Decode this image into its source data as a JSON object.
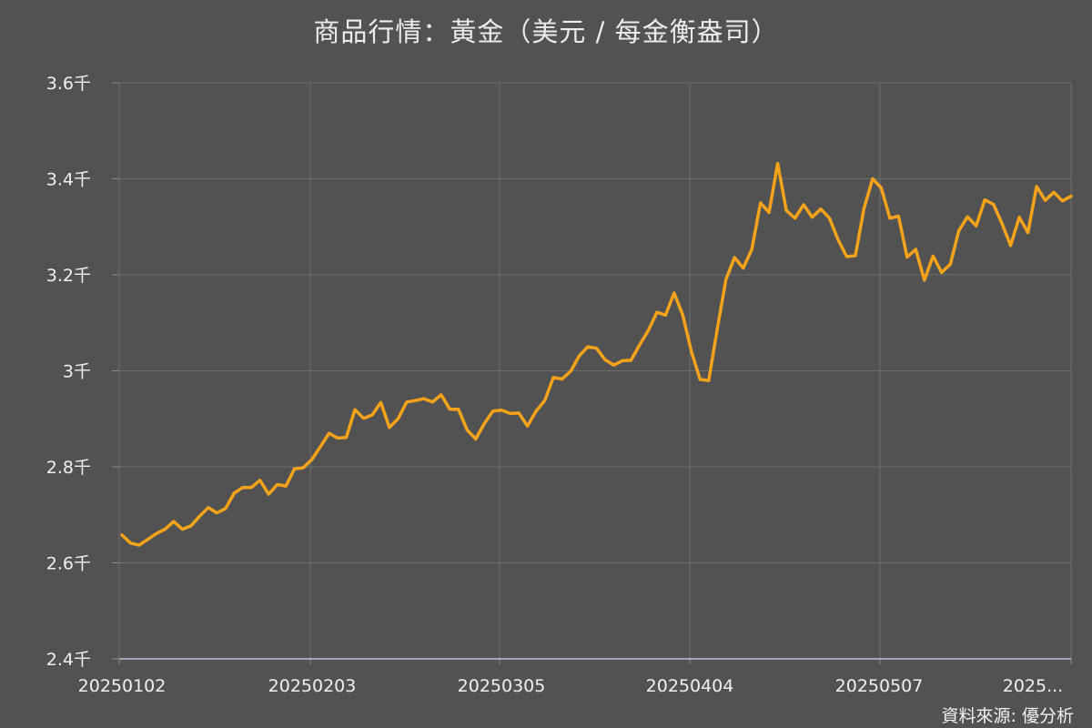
{
  "chart_data": {
    "type": "line",
    "title": "商品行情：黃金（美元 / 每金衡盎司）",
    "source": "資料來源: 優分析",
    "y_tick_labels": [
      "2.4千",
      "2.6千",
      "2.8千",
      "3千",
      "3.2千",
      "3.4千",
      "3.6千"
    ],
    "y_ticks": [
      2400,
      2600,
      2800,
      3000,
      3200,
      3400,
      3600
    ],
    "ylim": [
      2400,
      3600
    ],
    "x_tick_labels": [
      "20250102",
      "20250203",
      "20250305",
      "20250404",
      "20250507",
      "2025..."
    ],
    "grid": true,
    "series": [
      {
        "color": "#f5a31a",
        "values": [
          2658,
          2641,
          2637,
          2649,
          2661,
          2670,
          2686,
          2670,
          2677,
          2697,
          2715,
          2704,
          2713,
          2745,
          2757,
          2757,
          2772,
          2743,
          2763,
          2760,
          2796,
          2798,
          2815,
          2842,
          2870,
          2860,
          2861,
          2919,
          2901,
          2908,
          2934,
          2882,
          2900,
          2935,
          2938,
          2942,
          2935,
          2950,
          2920,
          2920,
          2877,
          2858,
          2890,
          2916,
          2918,
          2911,
          2912,
          2885,
          2916,
          2938,
          2986,
          2983,
          2999,
          3031,
          3050,
          3047,
          3023,
          3012,
          3021,
          3022,
          3054,
          3084,
          3122,
          3116,
          3162,
          3116,
          3040,
          2982,
          2980,
          3087,
          3190,
          3236,
          3214,
          3253,
          3350,
          3330,
          3432,
          3334,
          3318,
          3346,
          3320,
          3337,
          3318,
          3273,
          3238,
          3240,
          3338,
          3400,
          3381,
          3318,
          3322,
          3237,
          3253,
          3189,
          3239,
          3205,
          3222,
          3292,
          3321,
          3302,
          3356,
          3347,
          3307,
          3261,
          3320,
          3288,
          3384,
          3355,
          3372,
          3354,
          3364
        ]
      }
    ]
  }
}
